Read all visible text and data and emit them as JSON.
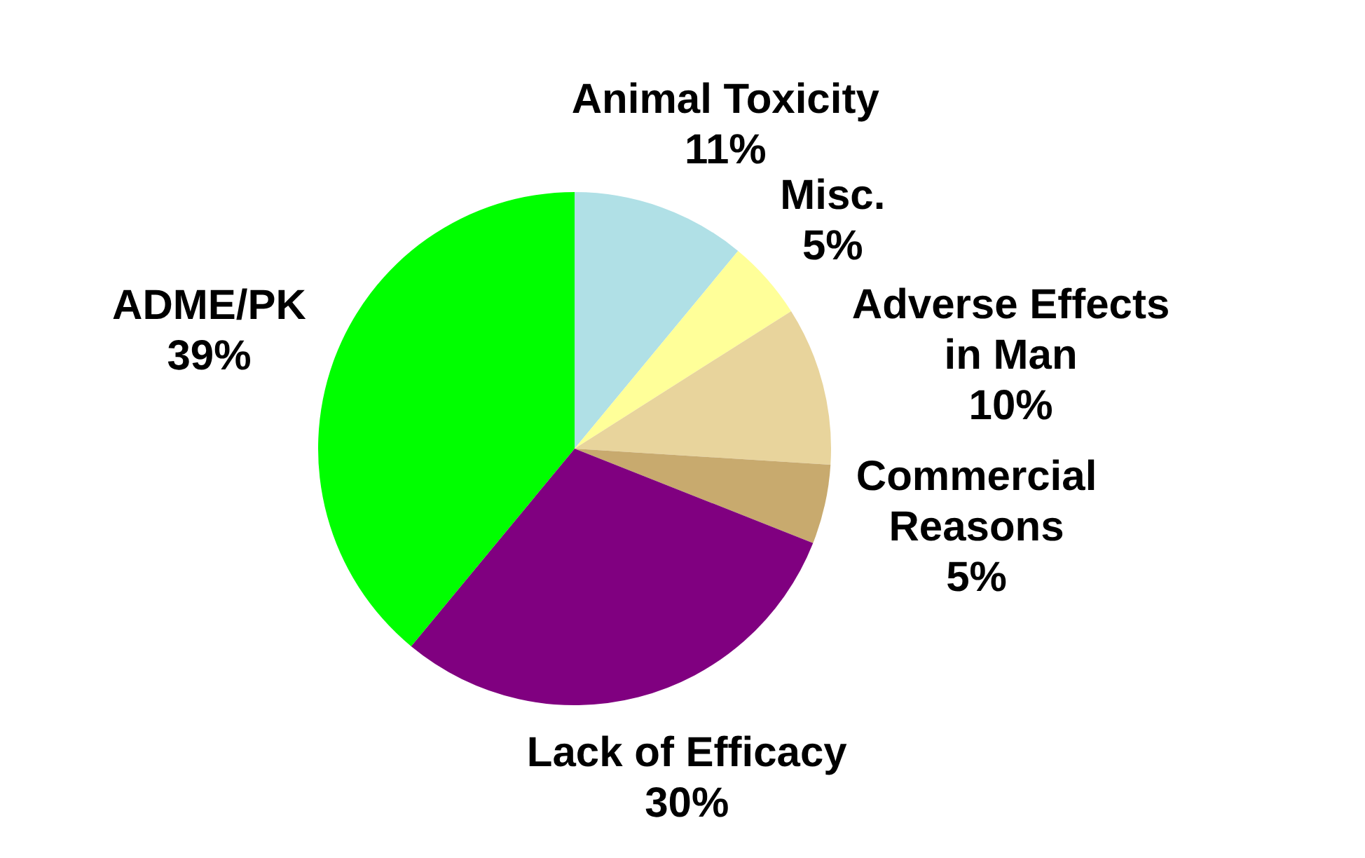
{
  "chart_data": {
    "type": "pie",
    "categories": [
      "Animal Toxicity",
      "Misc.",
      "Adverse Effects in Man",
      "Commercial Reasons",
      "Lack of Efficacy",
      "ADME/PK"
    ],
    "values": [
      11,
      5,
      10,
      5,
      30,
      39
    ],
    "colors": [
      "#b0e0e6",
      "#ffff99",
      "#e8d49c",
      "#c8aa6e",
      "#800080",
      "#00ff00"
    ],
    "value_labels": [
      "11%",
      "5%",
      "10%",
      "5%",
      "30%",
      "39%"
    ],
    "legend": false
  }
}
